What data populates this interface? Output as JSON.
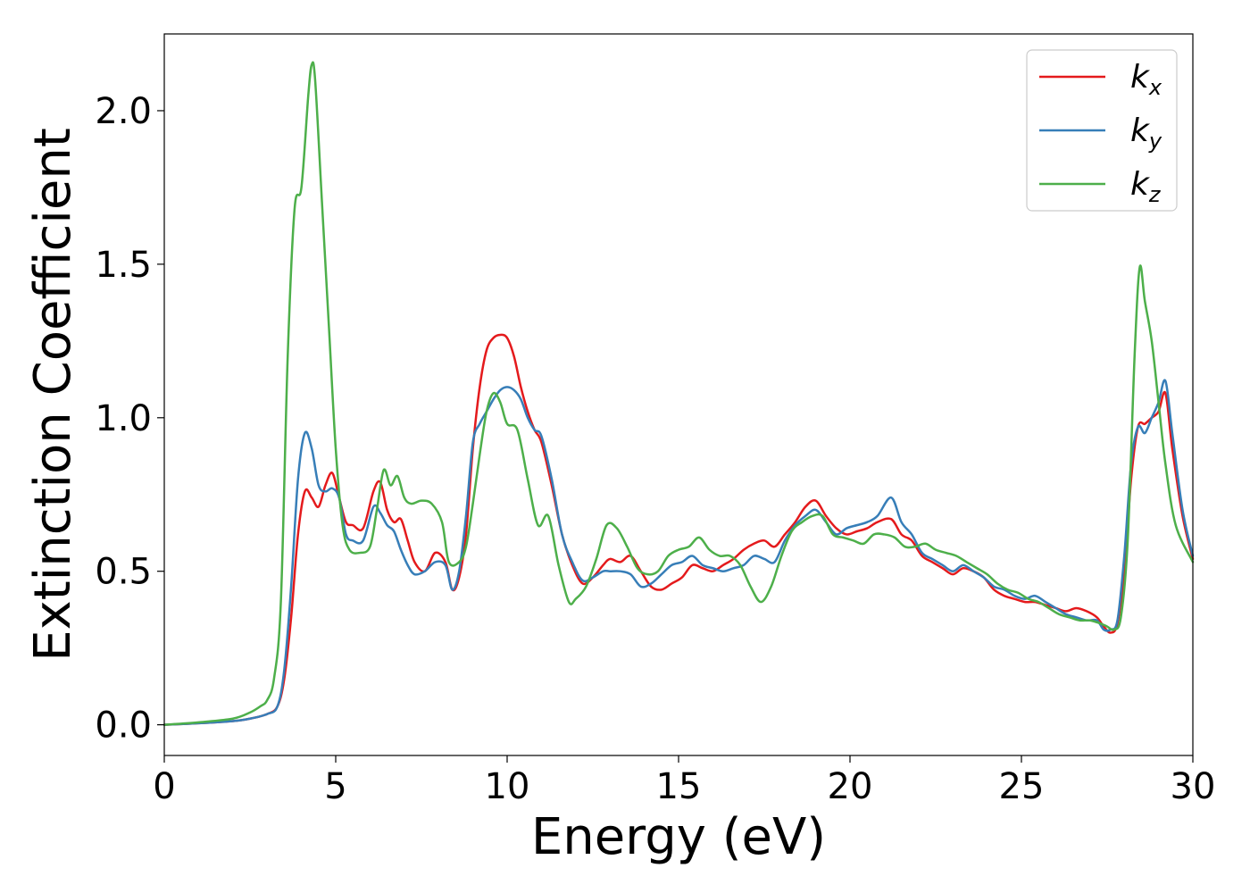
{
  "chart_data": {
    "type": "line",
    "title": "",
    "xlabel": "Energy (eV)",
    "ylabel": "Extinction Coefficient",
    "xlim": [
      0,
      30
    ],
    "ylim": [
      -0.1,
      2.25
    ],
    "xticks": [
      0,
      5,
      10,
      15,
      20,
      25,
      30
    ],
    "xtick_labels": [
      "0",
      "5",
      "10",
      "15",
      "20",
      "25",
      "30"
    ],
    "yticks": [
      0.0,
      0.5,
      1.0,
      1.5,
      2.0
    ],
    "ytick_labels": [
      "0.0",
      "0.5",
      "1.0",
      "1.5",
      "2.0"
    ],
    "grid": false,
    "legend_position": "top-right",
    "series": [
      {
        "name": "k_x",
        "label_main": "k",
        "label_sub": "x",
        "color": "#e41a1c",
        "x": [
          0,
          1,
          2,
          2.5,
          3,
          3.3,
          3.5,
          3.7,
          3.9,
          4.1,
          4.3,
          4.5,
          4.7,
          4.9,
          5.1,
          5.3,
          5.5,
          5.8,
          6.1,
          6.3,
          6.5,
          6.7,
          6.9,
          7.1,
          7.3,
          7.6,
          7.9,
          8.2,
          8.4,
          8.6,
          8.8,
          9.0,
          9.2,
          9.4,
          9.6,
          9.8,
          10.0,
          10.2,
          10.4,
          10.6,
          10.8,
          11.0,
          11.3,
          11.6,
          11.9,
          12.2,
          12.5,
          12.8,
          13.0,
          13.3,
          13.6,
          13.9,
          14.2,
          14.5,
          14.8,
          15.1,
          15.4,
          15.7,
          16.0,
          16.3,
          16.6,
          16.9,
          17.2,
          17.5,
          17.8,
          18.1,
          18.4,
          18.7,
          19.0,
          19.3,
          19.6,
          19.9,
          20.2,
          20.5,
          20.8,
          21.2,
          21.5,
          21.8,
          22.1,
          22.4,
          22.7,
          23.0,
          23.3,
          23.6,
          23.9,
          24.2,
          24.5,
          24.8,
          25.1,
          25.4,
          25.7,
          26.0,
          26.3,
          26.6,
          26.9,
          27.2,
          27.4,
          27.6,
          27.8,
          28.0,
          28.2,
          28.4,
          28.6,
          28.8,
          29.0,
          29.2,
          29.4,
          29.7,
          30.0
        ],
        "y": [
          0.0,
          0.005,
          0.012,
          0.02,
          0.035,
          0.06,
          0.15,
          0.35,
          0.62,
          0.76,
          0.74,
          0.71,
          0.78,
          0.82,
          0.74,
          0.66,
          0.65,
          0.64,
          0.76,
          0.79,
          0.7,
          0.66,
          0.67,
          0.6,
          0.53,
          0.5,
          0.56,
          0.53,
          0.44,
          0.48,
          0.62,
          0.9,
          1.1,
          1.22,
          1.26,
          1.27,
          1.26,
          1.2,
          1.1,
          1.02,
          0.96,
          0.92,
          0.78,
          0.62,
          0.52,
          0.46,
          0.48,
          0.52,
          0.54,
          0.53,
          0.55,
          0.5,
          0.45,
          0.44,
          0.46,
          0.48,
          0.52,
          0.51,
          0.5,
          0.52,
          0.54,
          0.57,
          0.59,
          0.6,
          0.58,
          0.62,
          0.66,
          0.71,
          0.73,
          0.68,
          0.64,
          0.62,
          0.63,
          0.64,
          0.66,
          0.67,
          0.62,
          0.6,
          0.55,
          0.53,
          0.51,
          0.49,
          0.51,
          0.5,
          0.48,
          0.44,
          0.42,
          0.41,
          0.4,
          0.4,
          0.39,
          0.38,
          0.37,
          0.38,
          0.37,
          0.35,
          0.32,
          0.3,
          0.33,
          0.5,
          0.8,
          0.97,
          0.98,
          1.0,
          1.02,
          1.08,
          0.9,
          0.68,
          0.54
        ]
      },
      {
        "name": "k_y",
        "label_main": "k",
        "label_sub": "y",
        "color": "#377eb8",
        "x": [
          0,
          1,
          2,
          2.5,
          3,
          3.3,
          3.5,
          3.7,
          3.9,
          4.1,
          4.3,
          4.5,
          4.7,
          4.9,
          5.1,
          5.3,
          5.5,
          5.8,
          6.1,
          6.3,
          6.5,
          6.7,
          6.9,
          7.1,
          7.3,
          7.6,
          7.9,
          8.2,
          8.4,
          8.6,
          8.8,
          9.0,
          9.2,
          9.4,
          9.6,
          9.8,
          10.0,
          10.2,
          10.4,
          10.6,
          10.8,
          11.0,
          11.3,
          11.6,
          11.9,
          12.2,
          12.5,
          12.8,
          13.0,
          13.3,
          13.6,
          13.9,
          14.2,
          14.5,
          14.8,
          15.1,
          15.4,
          15.7,
          16.0,
          16.3,
          16.6,
          16.9,
          17.2,
          17.5,
          17.8,
          18.1,
          18.4,
          18.7,
          19.0,
          19.3,
          19.6,
          19.9,
          20.2,
          20.5,
          20.8,
          21.2,
          21.5,
          21.8,
          22.1,
          22.4,
          22.7,
          23.0,
          23.3,
          23.6,
          23.9,
          24.2,
          24.5,
          24.8,
          25.1,
          25.4,
          25.7,
          26.0,
          26.3,
          26.6,
          26.9,
          27.2,
          27.4,
          27.6,
          27.8,
          28.0,
          28.2,
          28.4,
          28.6,
          28.8,
          29.0,
          29.2,
          29.4,
          29.7,
          30.0
        ],
        "y": [
          0.0,
          0.005,
          0.012,
          0.02,
          0.035,
          0.06,
          0.18,
          0.45,
          0.8,
          0.95,
          0.9,
          0.78,
          0.76,
          0.77,
          0.74,
          0.62,
          0.6,
          0.6,
          0.71,
          0.69,
          0.65,
          0.63,
          0.57,
          0.52,
          0.49,
          0.5,
          0.53,
          0.52,
          0.44,
          0.5,
          0.68,
          0.92,
          0.98,
          1.02,
          1.06,
          1.09,
          1.1,
          1.09,
          1.06,
          1.0,
          0.96,
          0.94,
          0.8,
          0.62,
          0.53,
          0.47,
          0.48,
          0.5,
          0.5,
          0.5,
          0.49,
          0.45,
          0.46,
          0.49,
          0.52,
          0.53,
          0.55,
          0.52,
          0.51,
          0.5,
          0.51,
          0.52,
          0.55,
          0.54,
          0.53,
          0.6,
          0.65,
          0.68,
          0.7,
          0.66,
          0.62,
          0.64,
          0.65,
          0.66,
          0.68,
          0.74,
          0.66,
          0.62,
          0.56,
          0.54,
          0.52,
          0.5,
          0.52,
          0.5,
          0.48,
          0.45,
          0.44,
          0.42,
          0.41,
          0.42,
          0.4,
          0.38,
          0.36,
          0.35,
          0.34,
          0.34,
          0.31,
          0.31,
          0.34,
          0.55,
          0.85,
          0.97,
          0.95,
          1.0,
          1.05,
          1.12,
          0.95,
          0.7,
          0.55
        ]
      },
      {
        "name": "k_z",
        "label_main": "k",
        "label_sub": "z",
        "color": "#4daf4a",
        "x": [
          0,
          1,
          2,
          2.5,
          2.8,
          3.0,
          3.2,
          3.4,
          3.6,
          3.8,
          4.0,
          4.2,
          4.3,
          4.4,
          4.6,
          4.8,
          5.0,
          5.2,
          5.4,
          5.7,
          6.0,
          6.2,
          6.4,
          6.6,
          6.8,
          7.0,
          7.2,
          7.5,
          7.8,
          8.1,
          8.3,
          8.6,
          8.8,
          9.0,
          9.2,
          9.4,
          9.6,
          9.8,
          10.0,
          10.3,
          10.6,
          10.9,
          11.2,
          11.5,
          11.8,
          12.0,
          12.3,
          12.6,
          12.9,
          13.2,
          13.5,
          13.8,
          14.1,
          14.4,
          14.7,
          15.0,
          15.3,
          15.6,
          15.9,
          16.2,
          16.5,
          16.8,
          17.1,
          17.4,
          17.7,
          18.0,
          18.3,
          18.6,
          18.9,
          19.2,
          19.5,
          19.8,
          20.1,
          20.4,
          20.7,
          21.0,
          21.3,
          21.6,
          21.9,
          22.2,
          22.5,
          22.8,
          23.1,
          23.4,
          23.7,
          24.0,
          24.3,
          24.6,
          24.9,
          25.2,
          25.5,
          25.8,
          26.1,
          26.4,
          26.7,
          27.0,
          27.3,
          27.5,
          27.7,
          27.9,
          28.1,
          28.3,
          28.45,
          28.6,
          28.8,
          29.0,
          29.2,
          29.5,
          30.0
        ],
        "y": [
          0.0,
          0.008,
          0.02,
          0.04,
          0.06,
          0.08,
          0.15,
          0.4,
          1.2,
          1.68,
          1.75,
          2.05,
          2.15,
          2.1,
          1.7,
          1.3,
          0.9,
          0.65,
          0.57,
          0.56,
          0.58,
          0.7,
          0.83,
          0.78,
          0.81,
          0.74,
          0.72,
          0.73,
          0.72,
          0.66,
          0.53,
          0.53,
          0.58,
          0.72,
          0.88,
          1.02,
          1.08,
          1.05,
          0.98,
          0.96,
          0.8,
          0.65,
          0.68,
          0.52,
          0.4,
          0.41,
          0.45,
          0.54,
          0.65,
          0.64,
          0.58,
          0.51,
          0.49,
          0.5,
          0.55,
          0.57,
          0.58,
          0.61,
          0.57,
          0.55,
          0.55,
          0.52,
          0.45,
          0.4,
          0.45,
          0.55,
          0.63,
          0.66,
          0.68,
          0.68,
          0.62,
          0.61,
          0.6,
          0.59,
          0.62,
          0.62,
          0.61,
          0.58,
          0.58,
          0.59,
          0.57,
          0.56,
          0.55,
          0.53,
          0.51,
          0.49,
          0.46,
          0.44,
          0.43,
          0.41,
          0.4,
          0.38,
          0.36,
          0.35,
          0.34,
          0.34,
          0.33,
          0.32,
          0.31,
          0.35,
          0.6,
          1.2,
          1.49,
          1.38,
          1.25,
          1.05,
          0.85,
          0.65,
          0.53
        ]
      }
    ]
  }
}
